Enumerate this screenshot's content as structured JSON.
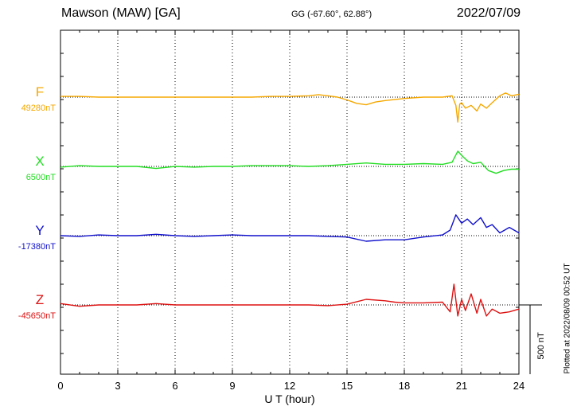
{
  "header": {
    "station": "Mawson (MAW)  [GA]",
    "coords": "GG (-67.60°,  62.88°)",
    "date": "2022/07/09"
  },
  "plotted_note": "Plotted at 2022/08/09 00:52 UT",
  "chart_data": {
    "type": "line",
    "xlabel": "U T (hour)",
    "xlim": [
      0,
      24
    ],
    "xticks": [
      "0",
      "3",
      "6",
      "9",
      "12",
      "15",
      "18",
      "21",
      "24"
    ],
    "scale_bar_label": "500 nT",
    "scale_bar_nT": 500,
    "grid": "vertical dotted at every 3 hours, horizontal dotted baseline per component",
    "series": [
      {
        "name": "F",
        "baseline_label": "49280nT",
        "baseline_nT": 49280,
        "color": "#f5a800",
        "x": [
          0,
          1,
          2,
          3,
          4,
          5,
          6,
          7,
          8,
          9,
          10,
          11,
          12,
          13,
          13.5,
          14,
          14.5,
          15,
          15.5,
          16,
          16.5,
          17,
          18,
          19,
          20,
          20.5,
          20.7,
          20.8,
          20.9,
          21,
          21.2,
          21.5,
          21.8,
          22,
          22.3,
          22.6,
          23,
          23.3,
          23.6,
          24
        ],
        "y": [
          5,
          5,
          0,
          0,
          0,
          0,
          0,
          0,
          0,
          0,
          0,
          5,
          5,
          10,
          18,
          10,
          0,
          -20,
          -45,
          -55,
          -35,
          -25,
          -10,
          0,
          0,
          10,
          -60,
          -180,
          -50,
          -40,
          -80,
          -60,
          -100,
          -50,
          -80,
          -40,
          10,
          30,
          10,
          20
        ]
      },
      {
        "name": "X",
        "baseline_label": "6500nT",
        "baseline_nT": 6500,
        "color": "#22dd22",
        "x": [
          0,
          1,
          2,
          3,
          4,
          5,
          6,
          7,
          8,
          9,
          10,
          11,
          12,
          13,
          14,
          15,
          16,
          17,
          18,
          19,
          20,
          20.5,
          20.8,
          21,
          21.3,
          21.6,
          22,
          22.4,
          22.8,
          23.2,
          23.6,
          24
        ],
        "y": [
          -5,
          5,
          0,
          0,
          0,
          -15,
          0,
          -5,
          0,
          0,
          5,
          5,
          5,
          0,
          5,
          15,
          25,
          15,
          15,
          20,
          15,
          30,
          110,
          80,
          40,
          20,
          30,
          -30,
          -50,
          -30,
          -20,
          -20
        ]
      },
      {
        "name": "Y",
        "baseline_label": "-17380nT",
        "baseline_nT": -17380,
        "color": "#1010cc",
        "x": [
          0,
          1,
          2,
          3,
          4,
          5,
          6,
          7,
          8,
          9,
          10,
          11,
          12,
          13,
          14,
          15,
          16,
          17,
          18,
          19,
          20,
          20.4,
          20.7,
          21,
          21.3,
          21.6,
          22,
          22.3,
          22.6,
          23,
          23.5,
          24
        ],
        "y": [
          0,
          -5,
          5,
          0,
          0,
          10,
          0,
          -5,
          0,
          5,
          0,
          0,
          0,
          0,
          -5,
          -10,
          -40,
          -30,
          -30,
          -10,
          5,
          40,
          150,
          90,
          120,
          80,
          130,
          60,
          80,
          20,
          60,
          20
        ]
      },
      {
        "name": "Z",
        "baseline_label": "-45650nT",
        "baseline_nT": -45650,
        "color": "#dd1111",
        "x": [
          0,
          1,
          2,
          3,
          4,
          5,
          6,
          7,
          8,
          9,
          10,
          11,
          12,
          13,
          14,
          15,
          16,
          17,
          17.5,
          18,
          19,
          20,
          20.4,
          20.6,
          20.8,
          21,
          21.2,
          21.5,
          21.8,
          22,
          22.3,
          22.6,
          23,
          23.5,
          24
        ],
        "y": [
          10,
          -10,
          0,
          0,
          0,
          10,
          0,
          0,
          0,
          0,
          0,
          0,
          0,
          0,
          -5,
          5,
          40,
          30,
          20,
          15,
          15,
          20,
          -50,
          150,
          -80,
          40,
          -40,
          80,
          -60,
          40,
          -80,
          -30,
          -60,
          -50,
          -30
        ]
      }
    ]
  }
}
